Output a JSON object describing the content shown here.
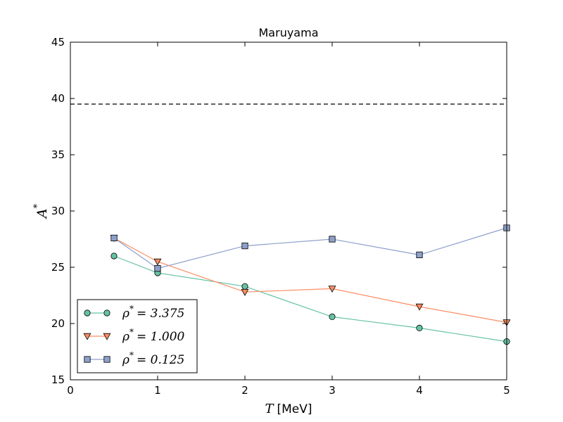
{
  "chart_data": {
    "type": "line",
    "title": "Maruyama",
    "xlabel": {
      "symbol": "T",
      "unit": "[MeV]"
    },
    "ylabel": {
      "symbol": "A",
      "superscript": "*"
    },
    "xlim": [
      0,
      5
    ],
    "ylim": [
      15,
      45
    ],
    "xticks": [
      0,
      1,
      2,
      3,
      4,
      5
    ],
    "yticks": [
      15,
      20,
      25,
      30,
      35,
      40,
      45
    ],
    "grid": false,
    "legend_position": "lower-left",
    "reference_line": {
      "y": 39.5,
      "style": "dashed",
      "color": "#000000"
    },
    "series": [
      {
        "name": "ρ* = 3.375",
        "rho_value": "3.375",
        "marker": "circle",
        "color": "#66c2a5",
        "x": [
          0.5,
          1,
          2,
          3,
          4,
          5
        ],
        "y": [
          26.0,
          24.5,
          23.3,
          20.6,
          19.6,
          18.4
        ]
      },
      {
        "name": "ρ* = 1.000",
        "rho_value": "1.000",
        "marker": "triangle-down",
        "color": "#fc8d62",
        "x": [
          0.5,
          1,
          2,
          3,
          4,
          5
        ],
        "y": [
          27.6,
          25.5,
          22.8,
          23.1,
          21.5,
          20.1
        ]
      },
      {
        "name": "ρ* = 0.125",
        "rho_value": "0.125",
        "marker": "square",
        "color": "#8da0cb",
        "x": [
          0.5,
          1,
          2,
          3,
          4,
          5
        ],
        "y": [
          27.6,
          24.9,
          26.9,
          27.5,
          26.1,
          28.5
        ]
      }
    ]
  }
}
